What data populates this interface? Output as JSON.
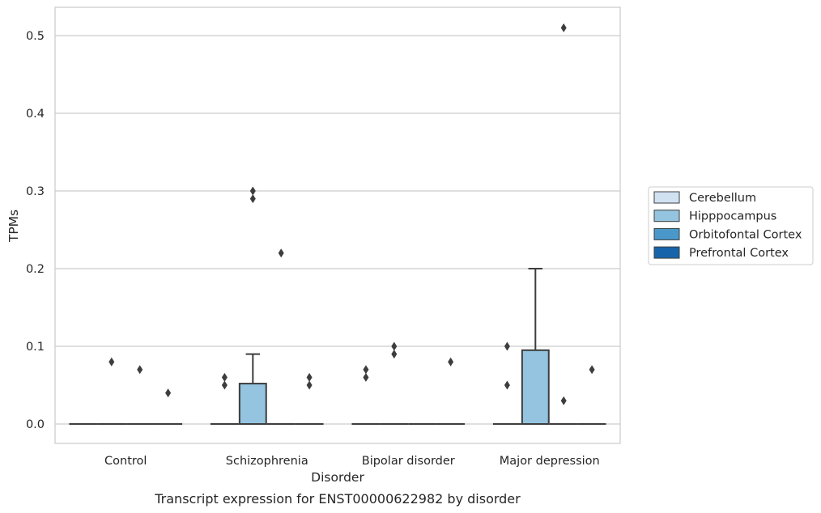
{
  "chart_data": {
    "type": "box",
    "caption": "Transcript expression for ENST00000622982 by disorder",
    "xlabel": "Disorder",
    "ylabel": "TPMs",
    "ylim": [
      -0.025,
      0.537
    ],
    "yticks": [
      0.0,
      0.1,
      0.2,
      0.3,
      0.4,
      0.5
    ],
    "ytick_labels": [
      "0.0",
      "0.1",
      "0.2",
      "0.3",
      "0.4",
      "0.5"
    ],
    "grid": true,
    "legend_position": "right",
    "categories": [
      "Control",
      "Schizophrenia",
      "Bipolar disorder",
      "Major depression"
    ],
    "series": [
      {
        "name": "Cerebellum",
        "color": "#d0e1f2",
        "boxes": [
          {
            "q1": 0,
            "median": 0,
            "q3": 0,
            "whislo": 0,
            "whishi": 0,
            "fliers": []
          },
          {
            "q1": 0,
            "median": 0,
            "q3": 0,
            "whislo": 0,
            "whishi": 0,
            "fliers": [
              0.06,
              0.05
            ]
          },
          {
            "q1": 0,
            "median": 0,
            "q3": 0,
            "whislo": 0,
            "whishi": 0,
            "fliers": [
              0.07,
              0.06
            ]
          },
          {
            "q1": 0,
            "median": 0,
            "q3": 0,
            "whislo": 0,
            "whishi": 0,
            "fliers": [
              0.1,
              0.05
            ]
          }
        ]
      },
      {
        "name": "Hipppocampus",
        "color": "#94c4df",
        "boxes": [
          {
            "q1": 0,
            "median": 0,
            "q3": 0,
            "whislo": 0,
            "whishi": 0,
            "fliers": [
              0.08
            ]
          },
          {
            "q1": 0,
            "median": 0,
            "q3": 0.052,
            "whislo": 0,
            "whishi": 0.09,
            "fliers": [
              0.3,
              0.29
            ]
          },
          {
            "q1": 0,
            "median": 0,
            "q3": 0,
            "whislo": 0,
            "whishi": 0,
            "fliers": [
              0.1,
              0.09
            ]
          },
          {
            "q1": 0,
            "median": 0,
            "q3": 0.095,
            "whislo": 0,
            "whishi": 0.2,
            "fliers": []
          }
        ]
      },
      {
        "name": "Orbitofontal Cortex",
        "color": "#4a98c9",
        "boxes": [
          {
            "q1": 0,
            "median": 0,
            "q3": 0,
            "whislo": 0,
            "whishi": 0,
            "fliers": [
              0.07
            ]
          },
          {
            "q1": 0,
            "median": 0,
            "q3": 0,
            "whislo": 0,
            "whishi": 0,
            "fliers": [
              0.22
            ]
          },
          {
            "q1": 0,
            "median": 0,
            "q3": 0,
            "whislo": 0,
            "whishi": 0,
            "fliers": []
          },
          {
            "q1": 0,
            "median": 0,
            "q3": 0,
            "whislo": 0,
            "whishi": 0,
            "fliers": [
              0.51,
              0.03
            ]
          }
        ]
      },
      {
        "name": "Prefrontal Cortex",
        "color": "#1764ab",
        "boxes": [
          {
            "q1": 0,
            "median": 0,
            "q3": 0,
            "whislo": 0,
            "whishi": 0,
            "fliers": [
              0.04
            ]
          },
          {
            "q1": 0,
            "median": 0,
            "q3": 0,
            "whislo": 0,
            "whishi": 0,
            "fliers": [
              0.06,
              0.05
            ]
          },
          {
            "q1": 0,
            "median": 0,
            "q3": 0,
            "whislo": 0,
            "whishi": 0,
            "fliers": [
              0.08
            ]
          },
          {
            "q1": 0,
            "median": 0,
            "q3": 0,
            "whislo": 0,
            "whishi": 0,
            "fliers": [
              0.07
            ]
          }
        ]
      }
    ]
  }
}
